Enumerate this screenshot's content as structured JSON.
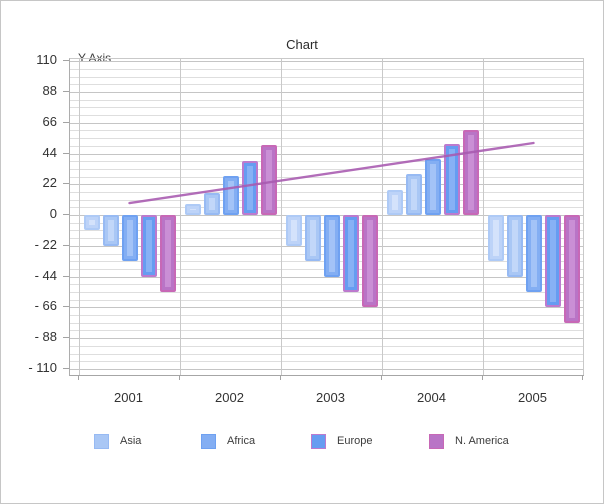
{
  "window": {
    "background_color": "#ffffff",
    "border_color": "#c6c6c6"
  },
  "chart_data": {
    "type": "bar",
    "title": "Chart",
    "y_axis_title": "Y Axis",
    "xlabel": "",
    "ylabel": "Y Axis",
    "categories": [
      "2001",
      "2002",
      "2003",
      "2004",
      "2005"
    ],
    "y_tick_labels": [
      "110",
      "88",
      "66",
      "44",
      "22",
      "0",
      "- 22",
      "- 44",
      "- 66",
      "- 88",
      "- 110"
    ],
    "ylim": [
      -110,
      110
    ],
    "y_major_step": 22,
    "y_minor_step": 5.5,
    "grid": {
      "horizontal_minor": true,
      "horizontal_major": true,
      "vertical_category_boundaries": true
    },
    "legend_position": "bottom",
    "series": [
      {
        "name": "",
        "in_legend": false,
        "values": [
          -11,
          8,
          -22,
          18,
          -33
        ],
        "fill": "#bdd3f8",
        "border": "#aecaf6",
        "highlight": "#d4e2fb"
      },
      {
        "name": "Asia",
        "in_legend": true,
        "values": [
          -22,
          16,
          -33,
          29,
          -44
        ],
        "fill": "#a9c7f5",
        "border": "#97baf3",
        "highlight": "#c2d7f9"
      },
      {
        "name": "Africa",
        "in_legend": true,
        "values": [
          -33,
          28,
          -44,
          40,
          -55
        ],
        "fill": "#83aef3",
        "border": "#6fa1f1",
        "highlight": "#a3c3f7"
      },
      {
        "name": "Europe",
        "in_legend": true,
        "values": [
          -44,
          39,
          -55,
          51,
          -66
        ],
        "fill": "#669cf1",
        "border": "#bc7ace",
        "highlight": "#87b1f5"
      },
      {
        "name": "N. America",
        "in_legend": true,
        "values": [
          -55,
          50,
          -66,
          61,
          -77
        ],
        "fill": "#b974c6",
        "border": "#c768b6",
        "highlight": "#ca8fd5"
      }
    ],
    "trend_line": {
      "color": "#a85ab0",
      "start": {
        "category": "2001",
        "value": 8.5
      },
      "end": {
        "category": "2005",
        "value": 51.5
      }
    }
  }
}
